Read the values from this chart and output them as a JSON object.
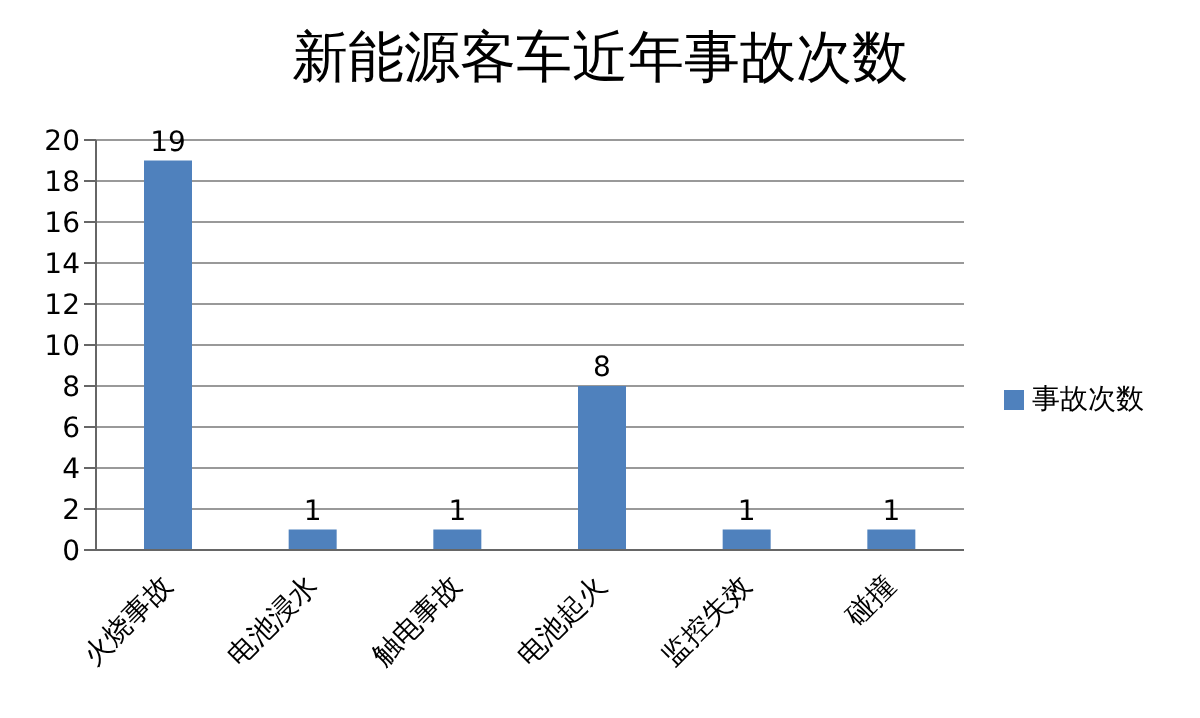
{
  "chart_data": {
    "type": "bar",
    "title": "新能源客车近年事故次数",
    "categories": [
      "火烧事故",
      "电池浸水",
      "触电事故",
      "电池起火",
      "监控失效",
      "碰撞"
    ],
    "series": [
      {
        "name": "事故次数",
        "color": "#4f81bd",
        "values": [
          19,
          1,
          1,
          8,
          1,
          1
        ]
      }
    ],
    "ylim": [
      0,
      20
    ],
    "yticks": [
      0,
      2,
      4,
      6,
      8,
      10,
      12,
      14,
      16,
      18,
      20
    ],
    "grid": "y",
    "legend": "right",
    "data_labels": true
  }
}
